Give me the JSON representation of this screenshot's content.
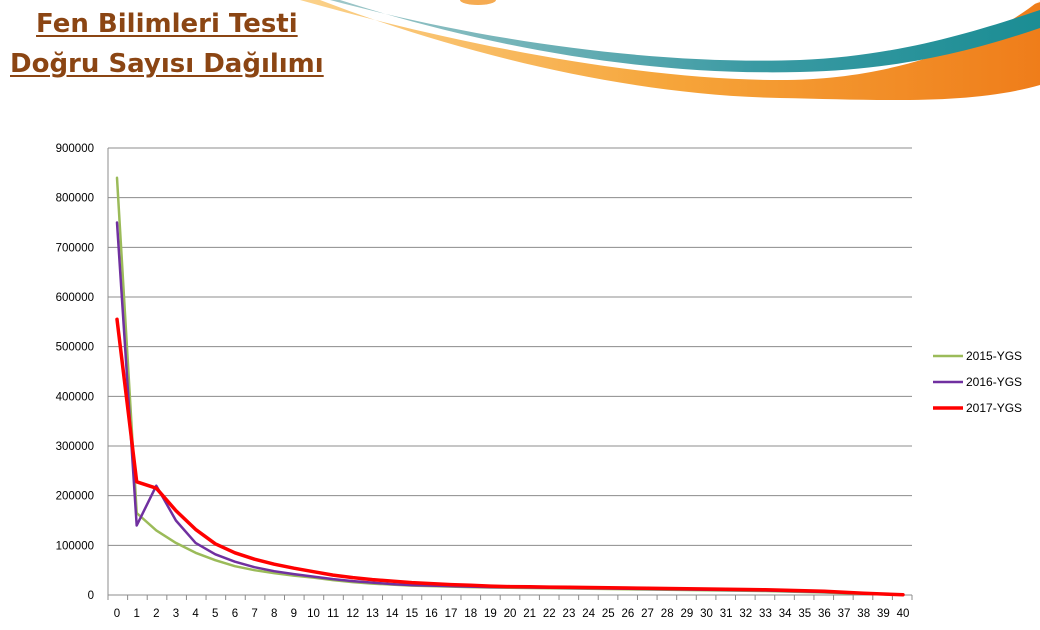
{
  "slide": {
    "title_line1": "Fen Bilimleri Testi",
    "title_line2": "Doğru Sayısı Dağılımı",
    "title_color": "#8b4513"
  },
  "chart_data": {
    "type": "line",
    "title": "",
    "xlabel": "",
    "ylabel": "",
    "x": [
      0,
      1,
      2,
      3,
      4,
      5,
      6,
      7,
      8,
      9,
      10,
      11,
      12,
      13,
      14,
      15,
      16,
      17,
      18,
      19,
      20,
      21,
      22,
      23,
      24,
      25,
      26,
      27,
      28,
      29,
      30,
      31,
      32,
      33,
      34,
      35,
      36,
      37,
      38,
      39,
      40
    ],
    "ylim": [
      0,
      900000
    ],
    "yticks": [
      0,
      100000,
      200000,
      300000,
      400000,
      500000,
      600000,
      700000,
      800000,
      900000
    ],
    "grid": true,
    "legend_position": "right",
    "series": [
      {
        "name": "2015-YGS",
        "color": "#9bbb59",
        "width": 2.5,
        "values": [
          840000,
          165000,
          130000,
          105000,
          85000,
          70000,
          58000,
          50000,
          44000,
          39000,
          35000,
          30000,
          26000,
          23000,
          21000,
          19000,
          18000,
          17000,
          16000,
          15000,
          14500,
          14000,
          13500,
          13000,
          12500,
          12000,
          11500,
          11000,
          10500,
          10000,
          9500,
          9000,
          8500,
          8000,
          7000,
          6000,
          5000,
          3500,
          2500,
          1500,
          800
        ]
      },
      {
        "name": "2016-YGS",
        "color": "#7030a0",
        "width": 2.5,
        "values": [
          750000,
          140000,
          220000,
          150000,
          105000,
          82000,
          67000,
          56000,
          48000,
          42000,
          37000,
          32000,
          28000,
          25000,
          22000,
          20000,
          19000,
          18000,
          17000,
          16000,
          15500,
          15000,
          14500,
          14000,
          13500,
          13000,
          12500,
          12000,
          11500,
          11000,
          10500,
          10000,
          9500,
          9000,
          8000,
          7000,
          6000,
          4500,
          3000,
          1500,
          500
        ]
      },
      {
        "name": "2017-YGS",
        "color": "#ff0000",
        "width": 3.5,
        "values": [
          555000,
          228000,
          215000,
          170000,
          132000,
          103000,
          85000,
          72000,
          62000,
          54000,
          47000,
          40000,
          35000,
          31000,
          28000,
          25000,
          23000,
          21000,
          19500,
          18000,
          17000,
          16500,
          16000,
          15500,
          15000,
          14500,
          14000,
          13500,
          13000,
          12500,
          12000,
          11500,
          11000,
          10500,
          9500,
          8500,
          7500,
          5500,
          3500,
          2000,
          700
        ]
      }
    ]
  }
}
